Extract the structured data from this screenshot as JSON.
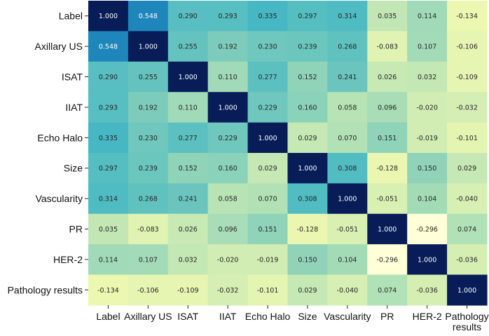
{
  "chart_data": {
    "type": "heatmap",
    "title": "",
    "xlabel": "",
    "ylabel": "",
    "colormap": "YlGnBu",
    "vmin": -0.3,
    "vmax": 1.0,
    "row_labels": [
      "Label",
      "Axillary US",
      "ISAT",
      "IIAT",
      "Echo Halo",
      "Size",
      "Vascularity",
      "PR",
      "HER-2",
      "Pathology results"
    ],
    "col_labels": [
      "Label",
      "Axillary US",
      "ISAT",
      "IIAT",
      "Echo Halo",
      "Size",
      "Vascularity",
      "PR",
      "HER-2",
      [
        "Pathology",
        "results"
      ]
    ],
    "values": [
      [
        1.0,
        0.548,
        0.29,
        0.293,
        0.335,
        0.297,
        0.314,
        0.035,
        0.114,
        -0.134
      ],
      [
        0.548,
        1.0,
        0.255,
        0.192,
        0.23,
        0.239,
        0.268,
        -0.083,
        0.107,
        -0.106
      ],
      [
        0.29,
        0.255,
        1.0,
        0.11,
        0.277,
        0.152,
        0.241,
        0.026,
        0.032,
        -0.109
      ],
      [
        0.293,
        0.192,
        0.11,
        1.0,
        0.229,
        0.16,
        0.058,
        0.096,
        -0.02,
        -0.032
      ],
      [
        0.335,
        0.23,
        0.277,
        0.229,
        1.0,
        0.029,
        0.07,
        0.151,
        -0.019,
        -0.101
      ],
      [
        0.297,
        0.239,
        0.152,
        0.16,
        0.029,
        1.0,
        0.308,
        -0.128,
        0.15,
        0.029
      ],
      [
        0.314,
        0.268,
        0.241,
        0.058,
        0.07,
        0.308,
        1.0,
        -0.051,
        0.104,
        -0.04
      ],
      [
        0.035,
        -0.083,
        0.026,
        0.096,
        0.151,
        -0.128,
        -0.051,
        1.0,
        -0.296,
        0.074
      ],
      [
        0.114,
        0.107,
        0.032,
        -0.02,
        -0.019,
        0.15,
        0.104,
        -0.296,
        1.0,
        -0.036
      ],
      [
        -0.134,
        -0.106,
        -0.109,
        -0.032,
        -0.101,
        0.029,
        -0.04,
        0.074,
        -0.036,
        1.0
      ]
    ]
  }
}
